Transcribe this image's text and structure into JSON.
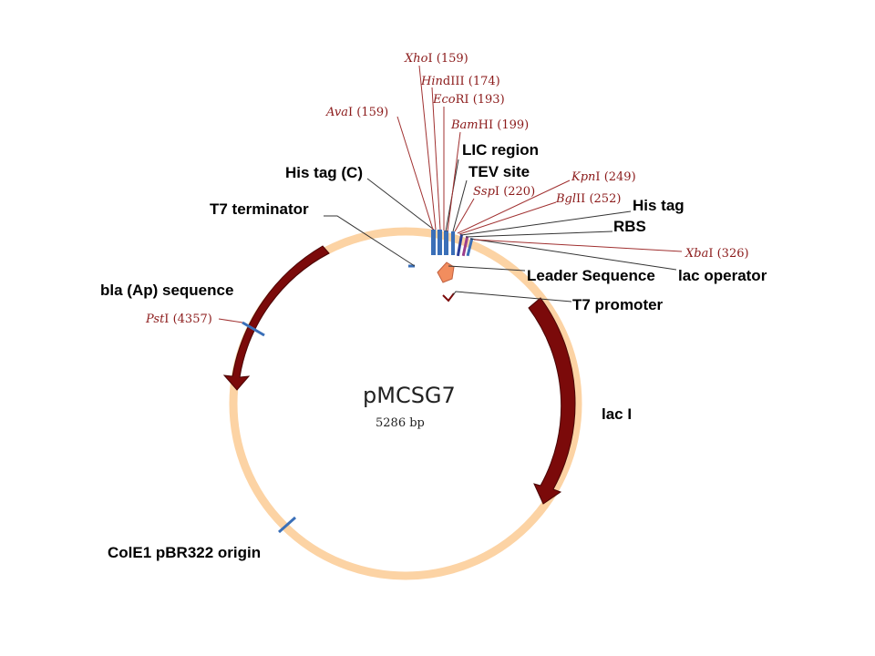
{
  "plasmid": {
    "name": "pMCSG7",
    "size_label": "5286 bp",
    "backbone_color": "#fcd3a4",
    "feature_color": "#7b0a0a",
    "site_color": "#3a6fb8",
    "enzyme_color": "#8b1a1a"
  },
  "features": [
    {
      "id": "lic-region",
      "label": "LIC region"
    },
    {
      "id": "tev-site",
      "label": "TEV site"
    },
    {
      "id": "his-tag-c",
      "label": "His tag (C)"
    },
    {
      "id": "t7-terminator",
      "label": "T7 terminator"
    },
    {
      "id": "his-tag",
      "label": "His tag"
    },
    {
      "id": "rbs",
      "label": "RBS"
    },
    {
      "id": "leader-sequence",
      "label": "Leader Sequence"
    },
    {
      "id": "lac-operator",
      "label": "lac operator"
    },
    {
      "id": "t7-promoter",
      "label": "T7 promoter"
    },
    {
      "id": "bla",
      "label": "bla (Ap) sequence"
    },
    {
      "id": "lac-i",
      "label": "lac I"
    },
    {
      "id": "cole1-origin",
      "label": "ColE1 pBR322 origin"
    }
  ],
  "enzymes": [
    {
      "id": "xhoi",
      "name_italic": "Xho",
      "name_rest": "I",
      "position": "(159)"
    },
    {
      "id": "hindiii",
      "name_italic": "Hin",
      "name_rest": "dIII",
      "position": "(174)"
    },
    {
      "id": "ecori",
      "name_italic": "Eco",
      "name_rest": "RI",
      "position": "(193)"
    },
    {
      "id": "avai",
      "name_italic": "Ava",
      "name_rest": "I",
      "position": "(159)"
    },
    {
      "id": "bamhi",
      "name_italic": "Bam",
      "name_rest": "HI",
      "position": "(199)"
    },
    {
      "id": "kpni",
      "name_italic": "Kpn",
      "name_rest": "I",
      "position": "(249)"
    },
    {
      "id": "sspi",
      "name_italic": "Ssp",
      "name_rest": "I",
      "position": "(220)"
    },
    {
      "id": "bglii",
      "name_italic": "Bgl",
      "name_rest": "II",
      "position": "(252)"
    },
    {
      "id": "xbai",
      "name_italic": "Xba",
      "name_rest": "I",
      "position": "(326)"
    },
    {
      "id": "psti",
      "name_italic": "Pst",
      "name_rest": "I",
      "position": "(4357)"
    }
  ]
}
